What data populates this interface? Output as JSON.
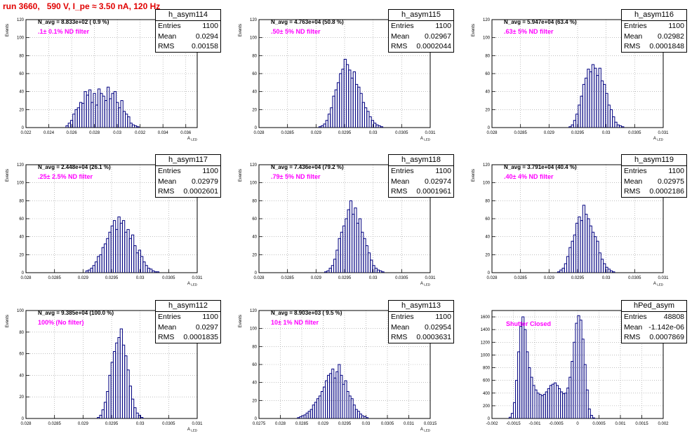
{
  "page_title": "run 3660,   590 V, I_pe ≈ 3.50 nA, 120 Hz",
  "chart_data": [
    {
      "type": "bar",
      "name": "h_asym114",
      "xlabel": "A_LED",
      "ylabel": "Events",
      "n_avg": "N_avg = 8.833e+02 ( 0.9 %)",
      "filter": ".1± 0.1% ND filter",
      "stats": {
        "entries": "1100",
        "mean": "0.0294",
        "rms": "0.00158"
      },
      "xlim": [
        0.022,
        0.037
      ],
      "ylim": [
        0,
        120
      ],
      "xticks": [
        "0.022",
        "0.024",
        "0.026",
        "0.028",
        "0.03",
        "0.032",
        "0.034",
        "0.036"
      ],
      "xtickvals": [
        0.022,
        0.024,
        0.026,
        0.028,
        0.03,
        0.032,
        0.034,
        0.036
      ],
      "yticks": [
        0,
        20,
        40,
        60,
        80,
        100,
        120
      ],
      "bins": {
        "start": 0.0255,
        "width": 0.0002,
        "values": [
          2,
          5,
          8,
          15,
          20,
          22,
          28,
          27,
          40,
          36,
          42,
          28,
          38,
          25,
          43,
          38,
          35,
          30,
          45,
          32,
          38,
          40,
          28,
          22,
          30,
          18,
          15,
          12,
          5,
          3,
          2,
          1
        ]
      }
    },
    {
      "type": "bar",
      "name": "h_asym115",
      "xlabel": "A_LED",
      "ylabel": "Events",
      "n_avg": "N_avg = 4.763e+04 (50.8 %)",
      "filter": ".50± 5% ND filter",
      "stats": {
        "entries": "1100",
        "mean": "0.02967",
        "rms": "0.0002044"
      },
      "xlim": [
        0.028,
        0.031
      ],
      "ylim": [
        0,
        120
      ],
      "xticks": [
        "0.028",
        "0.0285",
        "0.029",
        "0.0295",
        "0.03",
        "0.0305",
        "0.031"
      ],
      "xtickvals": [
        0.028,
        0.0285,
        0.029,
        0.0295,
        0.03,
        0.0305,
        0.031
      ],
      "yticks": [
        0,
        20,
        40,
        60,
        80,
        100,
        120
      ],
      "bins": {
        "start": 0.02905,
        "width": 4e-05,
        "values": [
          1,
          2,
          4,
          8,
          15,
          22,
          35,
          42,
          50,
          60,
          65,
          76,
          70,
          64,
          55,
          62,
          48,
          45,
          38,
          28,
          22,
          18,
          12,
          8,
          5,
          3,
          2,
          1
        ]
      }
    },
    {
      "type": "bar",
      "name": "h_asym116",
      "xlabel": "A_LED",
      "ylabel": "Events",
      "n_avg": "N_avg = 5.947e+04 (63.4 %)",
      "filter": ".63± 5% ND filter",
      "stats": {
        "entries": "1100",
        "mean": "0.02982",
        "rms": "0.0001848"
      },
      "xlim": [
        0.028,
        0.031
      ],
      "ylim": [
        0,
        120
      ],
      "xticks": [
        "0.028",
        "0.0285",
        "0.029",
        "0.0295",
        "0.03",
        "0.0305",
        "0.031"
      ],
      "xtickvals": [
        0.028,
        0.0285,
        0.029,
        0.0295,
        0.03,
        0.0305,
        0.031
      ],
      "yticks": [
        0,
        20,
        40,
        60,
        80,
        100,
        120
      ],
      "bins": {
        "start": 0.02935,
        "width": 4e-05,
        "values": [
          1,
          3,
          8,
          15,
          25,
          35,
          48,
          55,
          65,
          62,
          70,
          66,
          58,
          66,
          52,
          48,
          38,
          25,
          20,
          12,
          6,
          3,
          2,
          1
        ]
      }
    },
    {
      "type": "bar",
      "name": "h_asym117",
      "xlabel": "A_LED",
      "ylabel": "Events",
      "n_avg": "N_avg = 2.448e+04 (26.1 %)",
      "filter": ".25± 2.5% ND filter",
      "stats": {
        "entries": "1100",
        "mean": "0.02979",
        "rms": "0.0002601"
      },
      "xlim": [
        0.028,
        0.031
      ],
      "ylim": [
        0,
        120
      ],
      "xticks": [
        "0.028",
        "0.0285",
        "0.029",
        "0.0295",
        "0.03",
        "0.0305",
        "0.031"
      ],
      "xtickvals": [
        0.028,
        0.0285,
        0.029,
        0.0295,
        0.03,
        0.0305,
        0.031
      ],
      "yticks": [
        0,
        20,
        40,
        60,
        80,
        100,
        120
      ],
      "bins": {
        "start": 0.02905,
        "width": 4e-05,
        "values": [
          2,
          3,
          5,
          8,
          12,
          18,
          20,
          28,
          32,
          38,
          45,
          52,
          58,
          48,
          62,
          55,
          58,
          45,
          48,
          38,
          42,
          30,
          22,
          25,
          18,
          12,
          8,
          5,
          4,
          2,
          1,
          1
        ]
      }
    },
    {
      "type": "bar",
      "name": "h_asym118",
      "xlabel": "A_LED",
      "ylabel": "Events",
      "n_avg": "N_avg = 7.436e+04 (79.2 %)",
      "filter": ".79± 5% ND filter",
      "stats": {
        "entries": "1100",
        "mean": "0.02974",
        "rms": "0.0001961"
      },
      "xlim": [
        0.028,
        0.031
      ],
      "ylim": [
        0,
        120
      ],
      "xticks": [
        "0.028",
        "0.0285",
        "0.029",
        "0.0295",
        "0.03",
        "0.0305",
        "0.031"
      ],
      "xtickvals": [
        0.028,
        0.0285,
        0.029,
        0.0295,
        0.03,
        0.0305,
        0.031
      ],
      "yticks": [
        0,
        20,
        40,
        60,
        80,
        100,
        120
      ],
      "bins": {
        "start": 0.02915,
        "width": 4e-05,
        "values": [
          1,
          2,
          5,
          8,
          15,
          25,
          38,
          45,
          52,
          60,
          70,
          80,
          65,
          72,
          55,
          60,
          45,
          38,
          30,
          22,
          14,
          8,
          5,
          3,
          2,
          1
        ]
      }
    },
    {
      "type": "bar",
      "name": "h_asym119",
      "xlabel": "A_LED",
      "ylabel": "Events",
      "n_avg": "N_avg = 3.791e+04 (40.4 %)",
      "filter": ".40± 4% ND filter",
      "stats": {
        "entries": "1100",
        "mean": "0.02975",
        "rms": "0.0002186"
      },
      "xlim": [
        0.028,
        0.031
      ],
      "ylim": [
        0,
        120
      ],
      "xticks": [
        "0.028",
        "0.0285",
        "0.029",
        "0.0295",
        "0.03",
        "0.0305",
        "0.031"
      ],
      "xtickvals": [
        0.028,
        0.0285,
        0.029,
        0.0295,
        0.03,
        0.0305,
        0.031
      ],
      "yticks": [
        0,
        20,
        40,
        60,
        80,
        100,
        120
      ],
      "bins": {
        "start": 0.02915,
        "width": 4e-05,
        "values": [
          1,
          3,
          5,
          10,
          18,
          28,
          35,
          42,
          55,
          62,
          58,
          75,
          65,
          60,
          52,
          45,
          40,
          35,
          22,
          15,
          10,
          6,
          4,
          2,
          1
        ]
      }
    },
    {
      "type": "bar",
      "name": "h_asym112",
      "xlabel": "A_LED",
      "ylabel": "Events",
      "n_avg": "N_avg = 9.385e+04 (100.0 %)",
      "filter": "100% (No filter)",
      "stats": {
        "entries": "1100",
        "mean": "0.0297",
        "rms": "0.0001835"
      },
      "xlim": [
        0.028,
        0.031
      ],
      "ylim": [
        0,
        100
      ],
      "xticks": [
        "0.028",
        "0.0285",
        "0.029",
        "0.0295",
        "0.03",
        "0.0305",
        "0.031"
      ],
      "xtickvals": [
        0.028,
        0.0285,
        0.029,
        0.0295,
        0.03,
        0.0305,
        0.031
      ],
      "yticks": [
        0,
        20,
        40,
        60,
        80,
        100
      ],
      "bins": {
        "start": 0.02925,
        "width": 4e-05,
        "values": [
          1,
          3,
          8,
          15,
          25,
          40,
          52,
          62,
          70,
          75,
          83,
          68,
          58,
          45,
          30,
          18,
          10,
          5,
          3,
          1
        ]
      }
    },
    {
      "type": "bar",
      "name": "h_asym113",
      "xlabel": "A_LED",
      "ylabel": "Events",
      "n_avg": "N_avg = 8.903e+03 ( 9.5 %)",
      "filter": "10± 1% ND filter",
      "stats": {
        "entries": "1100",
        "mean": "0.02954",
        "rms": "0.0003631"
      },
      "xlim": [
        0.0275,
        0.0315
      ],
      "ylim": [
        0,
        120
      ],
      "xticks": [
        "0.0275",
        "0.028",
        "0.0285",
        "0.029",
        "0.0295",
        "0.03",
        "0.0305",
        "0.031",
        "0.0315"
      ],
      "xtickvals": [
        0.0275,
        0.028,
        0.0285,
        0.029,
        0.0295,
        0.03,
        0.0305,
        0.031,
        0.0315
      ],
      "yticks": [
        0,
        20,
        40,
        60,
        80,
        100,
        120
      ],
      "bins": {
        "start": 0.0284,
        "width": 5e-05,
        "values": [
          1,
          2,
          3,
          4,
          6,
          8,
          10,
          15,
          18,
          22,
          25,
          30,
          35,
          42,
          48,
          50,
          55,
          45,
          52,
          60,
          48,
          38,
          42,
          30,
          25,
          22,
          15,
          10,
          8,
          5,
          3,
          2,
          1
        ]
      }
    },
    {
      "type": "bar",
      "name": "hPed_asym",
      "xlabel": "",
      "ylabel": "",
      "n_avg": "",
      "filter": "Shutter Closed",
      "stats": {
        "entries": "48808",
        "mean": "-1.142e-06",
        "rms": "0.0007869"
      },
      "xlim": [
        -0.002,
        0.002
      ],
      "ylim": [
        0,
        1700
      ],
      "xticks": [
        "-0.002",
        "-0.0015",
        "-0.001",
        "-0.0005",
        "0",
        "0.0005",
        "0.001",
        "0.0015",
        "0.002"
      ],
      "xtickvals": [
        -0.002,
        -0.0015,
        -0.001,
        -0.0005,
        0,
        0.0005,
        0.001,
        0.0015,
        0.002
      ],
      "yticks": [
        0,
        200,
        400,
        600,
        800,
        1000,
        1200,
        1400,
        1600
      ],
      "bins": {
        "start": -0.0016,
        "width": 5e-05,
        "values": [
          20,
          80,
          250,
          600,
          1050,
          1450,
          1600,
          1400,
          1050,
          800,
          650,
          520,
          450,
          400,
          380,
          360,
          380,
          420,
          470,
          520,
          540,
          560,
          520,
          470,
          420,
          390,
          400,
          480,
          650,
          900,
          1200,
          1500,
          1620,
          1550,
          1250,
          850,
          450,
          150,
          50,
          10
        ]
      }
    }
  ]
}
